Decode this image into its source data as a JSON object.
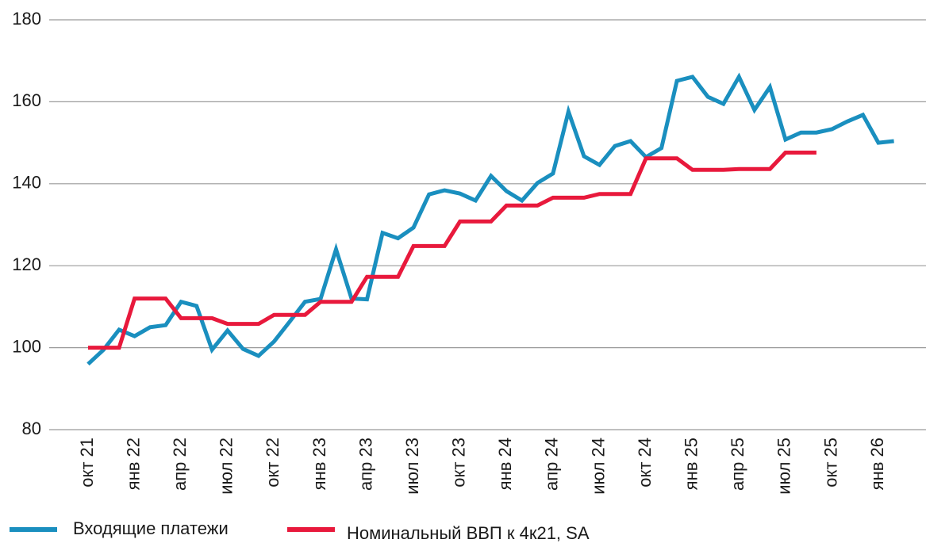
{
  "chart_data": {
    "type": "line",
    "categories": [
      "окт 21",
      null,
      null,
      "янв 22",
      null,
      null,
      "апр 22",
      null,
      null,
      "июл 22",
      null,
      null,
      "окт 22",
      null,
      null,
      "янв 23",
      null,
      null,
      "апр 23",
      null,
      null,
      "июл 23",
      null,
      null,
      "окт 23",
      null,
      null,
      "янв 24",
      null,
      null,
      "апр 24",
      null,
      null,
      "июл 24",
      null,
      null,
      "окт 24",
      null,
      null,
      "янв 25",
      null,
      null,
      "апр 25",
      null,
      null,
      "июл 25",
      null,
      null,
      "окт 25",
      null,
      null,
      "янв 26",
      null
    ],
    "series": [
      {
        "name": "Входящие платежи",
        "color": "#1a8fbf",
        "values": [
          96,
          99.5,
          104.4,
          102.8,
          105,
          105.5,
          111.2,
          110.2,
          99.5,
          104.2,
          99.7,
          98,
          101.5,
          106.3,
          111.2,
          111.9,
          124,
          112,
          111.8,
          128,
          126.7,
          129.3,
          137.4,
          138.4,
          137.6,
          135.9,
          141.9,
          138.2,
          135.9,
          140.2,
          142.5,
          157.6,
          146.7,
          144.6,
          149.2,
          150.4,
          146.5,
          148.7,
          165.1,
          166.1,
          161.2,
          159.5,
          166.1,
          158,
          163.6,
          150.8,
          152.5,
          152.5,
          153.3,
          155.2,
          156.8,
          150,
          150.4
        ]
      },
      {
        "name": "Номинальный ВВП к 4к21, SA",
        "color": "#e8193c",
        "values": [
          100,
          100,
          100,
          112,
          112,
          112,
          107.2,
          107.2,
          107.2,
          105.8,
          105.8,
          105.8,
          108,
          108,
          108,
          111.2,
          111.2,
          111.2,
          117.3,
          117.3,
          117.3,
          124.8,
          124.8,
          124.8,
          130.8,
          130.8,
          130.8,
          134.7,
          134.7,
          134.7,
          136.6,
          136.6,
          136.6,
          137.5,
          137.5,
          137.5,
          146.2,
          146.2,
          146.2,
          143.4,
          143.4,
          143.4,
          143.6,
          143.6,
          143.6,
          147.6,
          147.6,
          147.6,
          null,
          null,
          null,
          null,
          null
        ]
      }
    ],
    "ylim": [
      80,
      180
    ],
    "yticks": [
      80,
      100,
      120,
      140,
      160,
      180
    ],
    "grid": true
  }
}
